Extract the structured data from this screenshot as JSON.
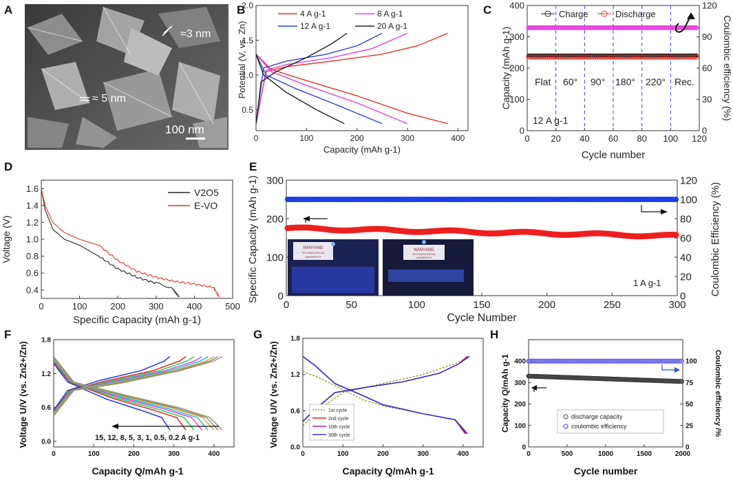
{
  "chart_data": [
    {
      "panel": "A",
      "type": "image",
      "annotations": [
        "≈3 nm",
        "≈ 5 nm",
        "100 nm"
      ]
    },
    {
      "panel": "B",
      "type": "line",
      "xlabel": "Capacity (mAh g-1)",
      "ylabel": "Potential (V, vs. Zn)",
      "xlim": [
        0,
        420
      ],
      "ylim": [
        0.2,
        2.0
      ],
      "xticks": [
        0,
        100,
        200,
        300,
        400
      ],
      "yticks": [
        0.5,
        1.0,
        1.5,
        2.0
      ],
      "series": [
        {
          "name": "4 A g-1",
          "color": "#e0332a",
          "charge": [
            [
              0,
              0.3
            ],
            [
              20,
              1.05
            ],
            [
              60,
              1.12
            ],
            [
              150,
              1.2
            ],
            [
              250,
              1.3
            ],
            [
              320,
              1.42
            ],
            [
              380,
              1.6
            ]
          ],
          "discharge": [
            [
              0,
              1.3
            ],
            [
              30,
              1.08
            ],
            [
              100,
              0.92
            ],
            [
              200,
              0.7
            ],
            [
              300,
              0.45
            ],
            [
              380,
              0.3
            ]
          ]
        },
        {
          "name": "8 A g-1",
          "color": "#ea3ee0",
          "charge": [
            [
              0,
              0.3
            ],
            [
              20,
              1.07
            ],
            [
              60,
              1.15
            ],
            [
              150,
              1.25
            ],
            [
              230,
              1.38
            ],
            [
              300,
              1.6
            ]
          ],
          "discharge": [
            [
              0,
              1.3
            ],
            [
              30,
              1.05
            ],
            [
              100,
              0.85
            ],
            [
              200,
              0.6
            ],
            [
              300,
              0.3
            ]
          ]
        },
        {
          "name": "12 A g-1",
          "color": "#2f3fe0",
          "charge": [
            [
              0,
              0.3
            ],
            [
              15,
              1.1
            ],
            [
              60,
              1.2
            ],
            [
              140,
              1.3
            ],
            [
              200,
              1.42
            ],
            [
              250,
              1.6
            ]
          ],
          "discharge": [
            [
              0,
              1.3
            ],
            [
              20,
              1.0
            ],
            [
              80,
              0.8
            ],
            [
              150,
              0.6
            ],
            [
              250,
              0.3
            ]
          ]
        },
        {
          "name": "20 A g-1",
          "color": "#222222",
          "charge": [
            [
              0,
              0.3
            ],
            [
              10,
              0.9
            ],
            [
              40,
              1.05
            ],
            [
              100,
              1.25
            ],
            [
              150,
              1.45
            ],
            [
              180,
              1.6
            ]
          ],
          "discharge": [
            [
              0,
              1.3
            ],
            [
              15,
              1.0
            ],
            [
              60,
              0.75
            ],
            [
              120,
              0.5
            ],
            [
              175,
              0.3
            ]
          ]
        }
      ]
    },
    {
      "panel": "C",
      "type": "scatter",
      "xlabel": "Cycle number",
      "ylabel": "Capacity (mAh g-1)",
      "ylabel_right": "Coulombic efficiency (%)",
      "xlim": [
        0,
        120
      ],
      "ylim": [
        0,
        400
      ],
      "ylim_right": [
        0,
        120
      ],
      "xticks": [
        0,
        20,
        40,
        60,
        80,
        100,
        120
      ],
      "yticks": [
        0,
        100,
        200,
        300,
        400
      ],
      "yticks_right": [
        0,
        30,
        60,
        90,
        120
      ],
      "legend": [
        "Charge",
        "Discharge"
      ],
      "charge_capacity": 240,
      "discharge_capacity": 235,
      "coulombic_efficiency": 100,
      "segments": [
        "Flat",
        "60°",
        "90°",
        "180°",
        "220°",
        "Rec."
      ],
      "dividers": [
        20,
        40,
        60,
        80,
        100
      ],
      "note": "12 A g-1"
    },
    {
      "panel": "D",
      "type": "line",
      "xlabel": "Specific Capacity (mAh g-1)",
      "ylabel": "Voltage (V)",
      "xlim": [
        0,
        500
      ],
      "ylim": [
        0.3,
        1.7
      ],
      "xticks": [
        0,
        100,
        200,
        300,
        400,
        500
      ],
      "xtick_labels": [
        "0",
        "100",
        "200",
        "300",
        "400",
        "500"
      ],
      "yticks": [
        0.4,
        0.6,
        0.8,
        1.0,
        1.2,
        1.4,
        1.6
      ],
      "series": [
        {
          "name": "V2O5",
          "color": "#222222",
          "points": [
            [
              0,
              1.6
            ],
            [
              10,
              1.35
            ],
            [
              30,
              1.12
            ],
            [
              60,
              1.0
            ],
            [
              100,
              0.93
            ],
            [
              150,
              0.8
            ],
            [
              200,
              0.65
            ],
            [
              250,
              0.55
            ],
            [
              300,
              0.48
            ],
            [
              340,
              0.43
            ],
            [
              360,
              0.32
            ]
          ]
        },
        {
          "name": "E-VO",
          "color": "#e0332a",
          "points": [
            [
              0,
              1.6
            ],
            [
              10,
              1.4
            ],
            [
              30,
              1.2
            ],
            [
              60,
              1.08
            ],
            [
              100,
              1.0
            ],
            [
              150,
              0.93
            ],
            [
              200,
              0.75
            ],
            [
              250,
              0.62
            ],
            [
              300,
              0.55
            ],
            [
              350,
              0.5
            ],
            [
              400,
              0.47
            ],
            [
              450,
              0.43
            ],
            [
              465,
              0.32
            ]
          ]
        }
      ]
    },
    {
      "panel": "E",
      "type": "scatter",
      "xlabel": "Cycle Number",
      "ylabel": "Specific Capacity (mAh g-1)",
      "ylabel_right": "Coulombic Efficiency (%)",
      "xlim": [
        0,
        300
      ],
      "ylim": [
        0,
        300
      ],
      "ylim_right": [
        0,
        120
      ],
      "xticks": [
        0,
        50,
        100,
        150,
        200,
        250,
        300
      ],
      "yticks": [
        0,
        100,
        200,
        300
      ],
      "yticks_right": [
        0,
        20,
        40,
        60,
        80,
        100,
        120
      ],
      "capacity_start": 175,
      "capacity_end": 155,
      "coulombic_efficiency": 100,
      "note": "1 A g-1",
      "inset_sign": [
        "NANYANG",
        "TECHNOLOGICAL",
        "UNIVERSITY"
      ]
    },
    {
      "panel": "F",
      "type": "line",
      "xlabel": "Capacity Q/mAh g-1",
      "ylabel": "Voltage U/V (vs. Zn2+/Zn)",
      "xlim": [
        0,
        450
      ],
      "ylim": [
        -0.1,
        1.8
      ],
      "xticks": [
        0,
        100,
        200,
        300,
        400
      ],
      "yticks": [
        0.0,
        0.6,
        1.2,
        1.8
      ],
      "ytick_labels": [
        "0.0",
        "0.6",
        "1.2",
        "1.8"
      ],
      "rates": [
        "15",
        "12",
        "8",
        "5",
        "3",
        "1",
        "0.5",
        "0.2"
      ],
      "rate_label": "15, 12, 8, 5, 3, 1, 0.5, 0.2 A g-1",
      "capacities": [
        290,
        330,
        350,
        370,
        385,
        400,
        410,
        420
      ],
      "colors": [
        "#2233dd",
        "#dd2222",
        "#22cc55",
        "#dd44dd",
        "#22bbdd",
        "#ddaa22",
        "#888888",
        "#999966"
      ]
    },
    {
      "panel": "G",
      "type": "line",
      "xlabel": "Capacity Q/mAh g-1",
      "ylabel": "Voltage U/V (vs. Zn2+/Zn)",
      "xlim": [
        0,
        450
      ],
      "ylim": [
        0.0,
        1.8
      ],
      "xticks": [
        0,
        100,
        200,
        300,
        400
      ],
      "yticks": [
        0.0,
        0.6,
        1.2,
        1.8
      ],
      "ytick_labels": [
        "0.0",
        "0.6",
        "1.2",
        "1.8"
      ],
      "legend": [
        "1st cycle",
        "2nd cycle",
        "10th cycle",
        "30th cycle"
      ],
      "legend_colors": [
        "#99992a",
        "#ee2222",
        "#aa22aa",
        "#3333dd"
      ]
    },
    {
      "panel": "H",
      "type": "scatter",
      "xlabel": "Cycle number",
      "ylabel": "Capacity Q/mAh g-1",
      "ylabel_right": "Coulombic efficiency /%",
      "xlim": [
        0,
        2000
      ],
      "ylim": [
        0,
        500
      ],
      "ylim_right": [
        0,
        125
      ],
      "xticks": [
        0,
        500,
        1000,
        1500,
        2000
      ],
      "yticks": [
        0,
        100,
        200,
        300,
        400
      ],
      "yticks_right": [
        0,
        25,
        50,
        75,
        100
      ],
      "legend": [
        "discharge capacity",
        "coulombic efficiency"
      ],
      "capacity_start": 330,
      "capacity_end": 305,
      "coulombic_efficiency": 100
    }
  ],
  "panel_letters": [
    "A",
    "B",
    "C",
    "D",
    "E",
    "F",
    "G",
    "H"
  ]
}
